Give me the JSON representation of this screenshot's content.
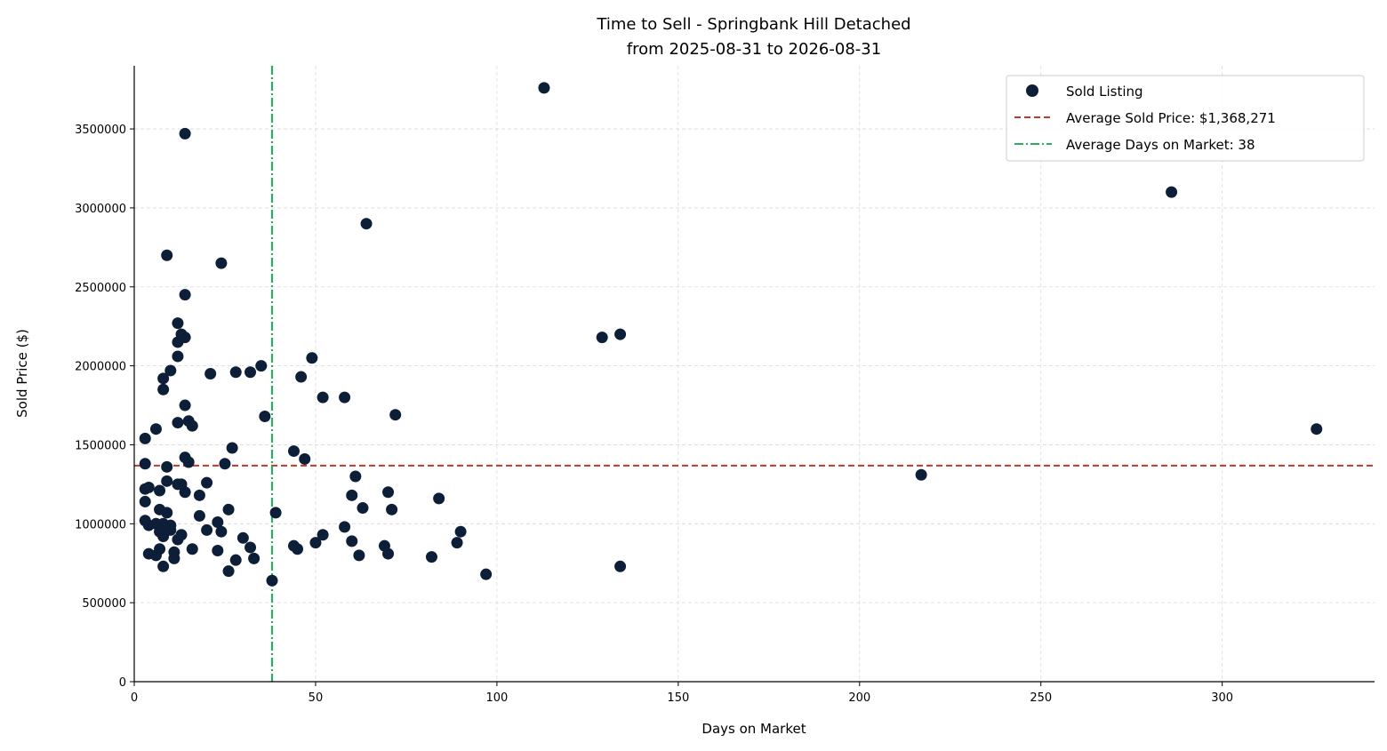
{
  "chart_data": {
    "type": "scatter",
    "title": "Time to Sell - Springbank Hill Detached",
    "subtitle": "from 2025-08-31 to 2026-08-31",
    "xlabel": "Days on Market",
    "ylabel": "Sold Price ($)",
    "xlim": [
      0,
      342
    ],
    "ylim": [
      0,
      3900000
    ],
    "xticks": [
      0,
      50,
      100,
      150,
      200,
      250,
      300
    ],
    "yticks": [
      0,
      500000,
      1000000,
      1500000,
      2000000,
      2500000,
      3000000,
      3500000
    ],
    "xtick_labels": [
      "0",
      "50",
      "100",
      "150",
      "200",
      "250",
      "300"
    ],
    "ytick_labels": [
      "0",
      "500000",
      "1000000",
      "1500000",
      "2000000",
      "2500000",
      "3000000",
      "3500000"
    ],
    "grid": true,
    "legend_position": "top-right",
    "colors": {
      "points": "#0d1f38",
      "avg_price_line": "#c0392b",
      "avg_days_line": "#27ae60",
      "grid": "#d9d9d9",
      "axis": "#000000"
    },
    "series": [
      {
        "name": "Sold Listing",
        "points": [
          [
            3,
            1540000
          ],
          [
            3,
            1380000
          ],
          [
            3,
            1220000
          ],
          [
            3,
            1140000
          ],
          [
            3,
            1020000
          ],
          [
            4,
            1230000
          ],
          [
            4,
            990000
          ],
          [
            4,
            810000
          ],
          [
            6,
            1600000
          ],
          [
            6,
            1000000
          ],
          [
            6,
            800000
          ],
          [
            7,
            1210000
          ],
          [
            7,
            1090000
          ],
          [
            7,
            950000
          ],
          [
            7,
            840000
          ],
          [
            8,
            1920000
          ],
          [
            8,
            1850000
          ],
          [
            8,
            1000000
          ],
          [
            8,
            920000
          ],
          [
            8,
            730000
          ],
          [
            9,
            2700000
          ],
          [
            9,
            1360000
          ],
          [
            9,
            1270000
          ],
          [
            9,
            1070000
          ],
          [
            10,
            1970000
          ],
          [
            10,
            990000
          ],
          [
            10,
            960000
          ],
          [
            11,
            820000
          ],
          [
            11,
            780000
          ],
          [
            12,
            2270000
          ],
          [
            12,
            2150000
          ],
          [
            12,
            2060000
          ],
          [
            12,
            1640000
          ],
          [
            12,
            1250000
          ],
          [
            12,
            900000
          ],
          [
            13,
            2200000
          ],
          [
            13,
            1250000
          ],
          [
            13,
            930000
          ],
          [
            14,
            3470000
          ],
          [
            14,
            2450000
          ],
          [
            14,
            2180000
          ],
          [
            14,
            1750000
          ],
          [
            14,
            1420000
          ],
          [
            14,
            1200000
          ],
          [
            15,
            1650000
          ],
          [
            15,
            1390000
          ],
          [
            16,
            1620000
          ],
          [
            16,
            840000
          ],
          [
            18,
            1180000
          ],
          [
            18,
            1050000
          ],
          [
            20,
            1260000
          ],
          [
            20,
            960000
          ],
          [
            21,
            1950000
          ],
          [
            23,
            1010000
          ],
          [
            23,
            830000
          ],
          [
            24,
            2650000
          ],
          [
            24,
            950000
          ],
          [
            25,
            1380000
          ],
          [
            26,
            1090000
          ],
          [
            26,
            700000
          ],
          [
            27,
            1480000
          ],
          [
            28,
            1960000
          ],
          [
            28,
            770000
          ],
          [
            30,
            910000
          ],
          [
            32,
            1960000
          ],
          [
            32,
            850000
          ],
          [
            33,
            780000
          ],
          [
            35,
            2000000
          ],
          [
            36,
            1680000
          ],
          [
            38,
            640000
          ],
          [
            39,
            1070000
          ],
          [
            44,
            1460000
          ],
          [
            44,
            860000
          ],
          [
            45,
            840000
          ],
          [
            46,
            1930000
          ],
          [
            47,
            1410000
          ],
          [
            49,
            2050000
          ],
          [
            50,
            880000
          ],
          [
            52,
            1800000
          ],
          [
            52,
            930000
          ],
          [
            58,
            1800000
          ],
          [
            58,
            980000
          ],
          [
            60,
            1180000
          ],
          [
            60,
            890000
          ],
          [
            61,
            1300000
          ],
          [
            62,
            800000
          ],
          [
            63,
            1100000
          ],
          [
            64,
            2900000
          ],
          [
            69,
            860000
          ],
          [
            70,
            1200000
          ],
          [
            70,
            810000
          ],
          [
            71,
            1090000
          ],
          [
            72,
            1690000
          ],
          [
            82,
            790000
          ],
          [
            84,
            1160000
          ],
          [
            89,
            880000
          ],
          [
            90,
            950000
          ],
          [
            97,
            680000
          ],
          [
            113,
            3760000
          ],
          [
            129,
            2180000
          ],
          [
            134,
            2200000
          ],
          [
            134,
            730000
          ],
          [
            217,
            1310000
          ],
          [
            286,
            3100000
          ],
          [
            326,
            1600000
          ]
        ]
      }
    ],
    "average_price": 1368271,
    "average_days": 38,
    "legend": {
      "sold_listing": "Sold Listing",
      "avg_price": "Average Sold Price: $1,368,271",
      "avg_days": "Average Days on Market: 38"
    }
  }
}
